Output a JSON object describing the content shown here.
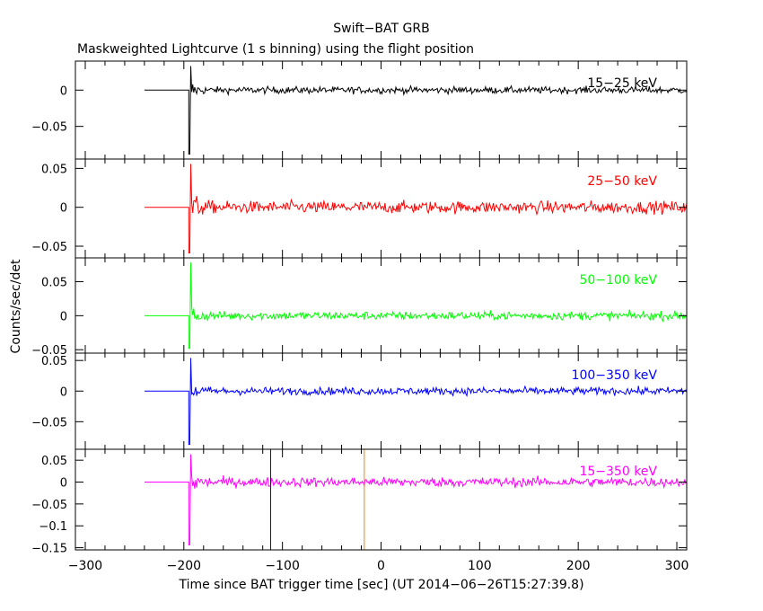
{
  "chart_data": {
    "type": "line",
    "title": "Swift−BAT GRB",
    "subtitle": "Maskweighted Lightcurve (1 s binning) using the flight position",
    "xlabel": "Time since BAT trigger time [sec] (UT 2014−06−26T15:27:39.8)",
    "ylabel": "Counts/sec/det",
    "xlim": [
      -310,
      310
    ],
    "xticks": [
      -300,
      -200,
      -100,
      0,
      100,
      200,
      300
    ],
    "xtick_labels": [
      "−300",
      "−200",
      "−100",
      "0",
      "100",
      "200",
      "300"
    ],
    "signal_start": -240,
    "burst_start": -195,
    "markers": [
      {
        "x": -112,
        "color": "#0000ff"
      },
      {
        "x": -17,
        "color": "#ff8000"
      }
    ],
    "panels": [
      {
        "label": "15−25 keV",
        "color": "#000000",
        "ylim": [
          -0.095,
          0.04
        ],
        "yticks": [
          0,
          -0.05
        ],
        "ytick_labels": [
          "0",
          "−0.05"
        ],
        "noise": 0.006,
        "offset": 0.0
      },
      {
        "label": "25−50 keV",
        "color": "#ff0000",
        "ylim": [
          -0.065,
          0.062
        ],
        "yticks": [
          0.05,
          0,
          -0.05
        ],
        "ytick_labels": [
          "0.05",
          "0",
          "−0.05"
        ],
        "noise": 0.01,
        "offset": 0.0
      },
      {
        "label": "50−100 keV",
        "color": "#00ff00",
        "ylim": [
          -0.055,
          0.085
        ],
        "yticks": [
          0.05,
          0,
          -0.05
        ],
        "ytick_labels": [
          "0.05",
          "0",
          "−0.05"
        ],
        "noise": 0.008,
        "offset": 0.0
      },
      {
        "label": "100−350 keV",
        "color": "#0000ff",
        "ylim": [
          -0.095,
          0.062
        ],
        "yticks": [
          0.05,
          0,
          -0.05
        ],
        "ytick_labels": [
          "0.05",
          "0",
          "−0.05"
        ],
        "noise": 0.008,
        "offset": 0.0
      },
      {
        "label": "15−350 keV",
        "color": "#ff00ff",
        "ylim": [
          -0.155,
          0.075
        ],
        "yticks": [
          0.05,
          0,
          -0.05,
          -0.1,
          -0.15
        ],
        "ytick_labels": [
          "0.05",
          "0",
          "−0.05",
          "−0.1",
          "−0.15"
        ],
        "noise": 0.014,
        "offset": 0.0
      }
    ]
  }
}
